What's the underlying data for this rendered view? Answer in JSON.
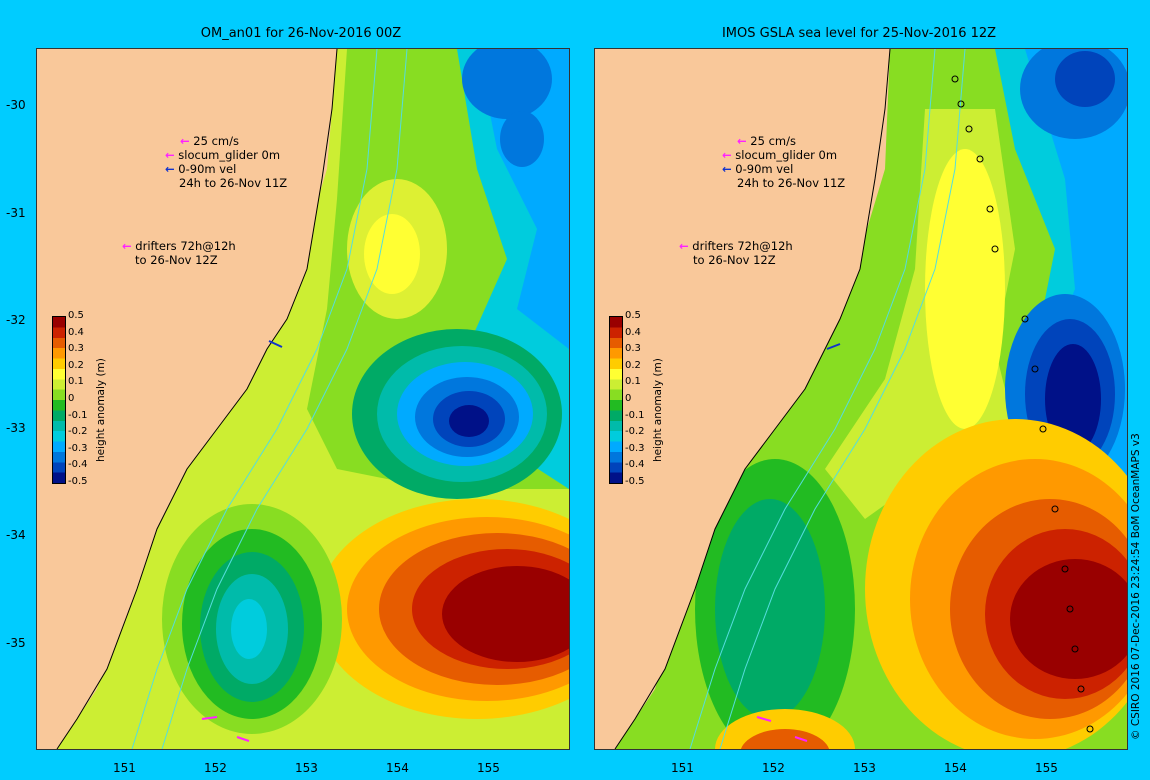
{
  "panels": [
    {
      "title": "OM_an01 for 26-Nov-2016 00Z",
      "legend_speed": "25 cm/s",
      "legend_glider": "slocum_glider 0m",
      "legend_vel": "0-90m vel",
      "legend_period": "24h to 26-Nov 11Z",
      "legend_drifters": "drifters 72h@12h",
      "legend_drifters_to": "to 26-Nov 12Z"
    },
    {
      "title": "IMOS GSLA sea level  for 25-Nov-2016 12Z",
      "legend_speed": "25 cm/s",
      "legend_glider": "slocum_glider 0m",
      "legend_vel": "0-90m vel",
      "legend_period": "24h to 26-Nov 11Z",
      "legend_drifters": "drifters 72h@12h",
      "legend_drifters_to": "to 26-Nov 12Z"
    }
  ],
  "latitude_labels": [
    "-30",
    "-31",
    "-32",
    "-33",
    "-34",
    "-35"
  ],
  "longitude_labels": [
    "151",
    "152",
    "153",
    "154",
    "155"
  ],
  "colorbar": {
    "title": "height anomaly (m)",
    "labels": [
      "0.5",
      "0.4",
      "0.3",
      "0.2",
      "0.1",
      "0",
      "-0.1",
      "-0.2",
      "-0.3",
      "-0.4",
      "-0.5"
    ],
    "colors": [
      "#990000",
      "#cc2200",
      "#e65c00",
      "#ff9900",
      "#ffcc00",
      "#ffff33",
      "#ccee33",
      "#88dd22",
      "#22bb22",
      "#00aa66",
      "#00bbaa",
      "#00ccdd",
      "#00aaff",
      "#0077dd",
      "#0044bb",
      "#001188"
    ]
  },
  "colors": {
    "background": "#00ccff",
    "land": "#f9c89a",
    "coast_shelf": "#b0a090",
    "isobath": "#55dddd",
    "drifter_arrow": "#ff22ff",
    "glider_arrow": "#1133cc"
  },
  "copyright": "© CSIRO 2016  07-Dec-2016 23:24:54 BoM OceanMAPS v3"
}
